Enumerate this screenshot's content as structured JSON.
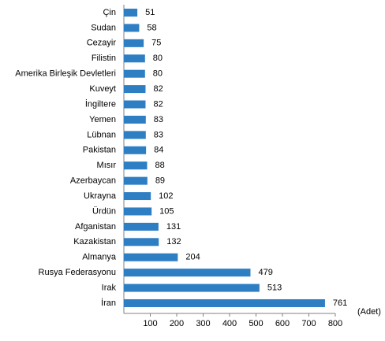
{
  "chart_data": {
    "type": "hbar",
    "categories": [
      "Çin",
      "Sudan",
      "Cezayir",
      "Filistin",
      "Amerika Birleşik Devletleri",
      "Kuveyt",
      "İngiltere",
      "Yemen",
      "Lübnan",
      "Pakistan",
      "Mısır",
      "Azerbaycan",
      "Ukrayna",
      "Ürdün",
      "Afganistan",
      "Kazakistan",
      "Almanya",
      "Rusya Federasyonu",
      "Irak",
      "İran"
    ],
    "values": [
      51,
      58,
      75,
      80,
      80,
      82,
      82,
      83,
      83,
      84,
      88,
      89,
      102,
      105,
      131,
      132,
      204,
      479,
      513,
      761
    ],
    "color": "#2e7ec4",
    "xlim": [
      0,
      800
    ],
    "xticks": [
      100,
      200,
      300,
      400,
      500,
      600,
      700,
      800
    ],
    "x_label": "(Adet)"
  }
}
